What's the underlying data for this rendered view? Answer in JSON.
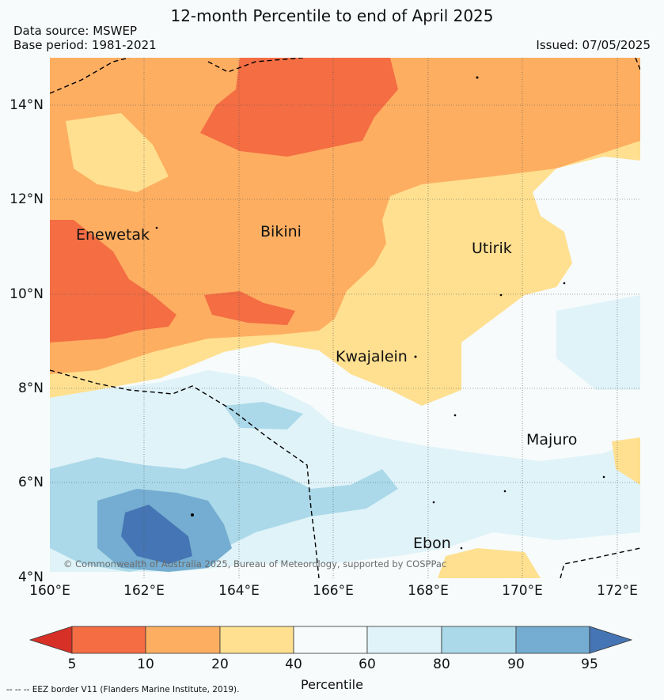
{
  "title": "12-month Percentile to end of April 2025",
  "data_source": "Data source: MSWEP",
  "base_period": "Base period: 1981-2021",
  "issued": "Issued: 07/05/2025",
  "copyright": "© Commonwealth of Australia 2025, Bureau of Meteorology, supported by COSPPac",
  "footnote": "--  --  -- EEZ border V11 (Flanders Marine Institute, 2019).",
  "lat_labels": [
    "14°N",
    "12°N",
    "10°N",
    "8°N",
    "6°N",
    "4°N"
  ],
  "lon_labels": [
    "160°E",
    "162°E",
    "164°E",
    "166°E",
    "168°E",
    "170°E",
    "172°E"
  ],
  "places": [
    {
      "name": "Enewetak"
    },
    {
      "name": "Bikini"
    },
    {
      "name": "Utirik"
    },
    {
      "name": "Kwajalein"
    },
    {
      "name": "Majuro"
    },
    {
      "name": "Ebon"
    }
  ],
  "colorbar": {
    "title": "Percentile",
    "ticks": [
      "5",
      "10",
      "20",
      "40",
      "60",
      "80",
      "90",
      "95"
    ],
    "colors": [
      "#d73027",
      "#f46d43",
      "#fdae61",
      "#fee090",
      "#f7fbfc",
      "#e0f3f8",
      "#abd9e9",
      "#74add1",
      "#4575b4"
    ]
  }
}
